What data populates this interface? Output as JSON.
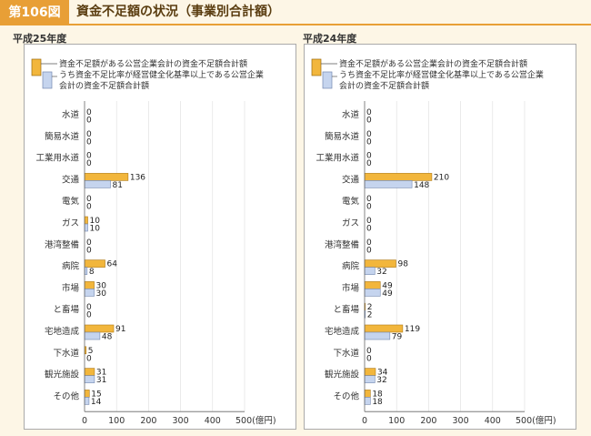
{
  "header": {
    "figure_number": "第106図",
    "title": "資金不足額の状況（事業別合計額）"
  },
  "colors": {
    "accent": "#e89f36",
    "series_a_fill": "#f2b63c",
    "series_b_fill": "#c5d4ee"
  },
  "chart_data": [
    {
      "type": "bar",
      "orientation": "horizontal",
      "period": "平成25年度",
      "legend": [
        "資金不足額がある公営企業会計の資金不足額合計額",
        "うち資金不足比率が経営健全化基準以上である公営企業会計の資金不足額合計額"
      ],
      "categories": [
        "水道",
        "簡易水道",
        "工業用水道",
        "交通",
        "電気",
        "ガス",
        "港湾整備",
        "病院",
        "市場",
        "と畜場",
        "宅地造成",
        "下水道",
        "観光施設",
        "その他"
      ],
      "series": [
        {
          "name": "資金不足額がある公営企業会計の資金不足額合計額",
          "values": [
            0,
            0,
            0,
            136,
            0,
            10,
            0,
            64,
            30,
            0,
            91,
            5,
            31,
            15
          ]
        },
        {
          "name": "うち資金不足比率が経営健全化基準以上である公営企業会計の資金不足額合計額",
          "values": [
            0,
            0,
            0,
            81,
            0,
            10,
            0,
            8,
            30,
            0,
            48,
            0,
            31,
            14
          ]
        }
      ],
      "xlim": [
        0,
        500
      ],
      "xticks": [
        "0",
        "100",
        "200",
        "300",
        "400",
        "500(億円)"
      ]
    },
    {
      "type": "bar",
      "orientation": "horizontal",
      "period": "平成24年度",
      "legend": [
        "資金不足額がある公営企業会計の資金不足額合計額",
        "うち資金不足比率が経営健全化基準以上である公営企業会計の資金不足額合計額"
      ],
      "categories": [
        "水道",
        "簡易水道",
        "工業用水道",
        "交通",
        "電気",
        "ガス",
        "港湾整備",
        "病院",
        "市場",
        "と畜場",
        "宅地造成",
        "下水道",
        "観光施設",
        "その他"
      ],
      "series": [
        {
          "name": "資金不足額がある公営企業会計の資金不足額合計額",
          "values": [
            0,
            0,
            0,
            210,
            0,
            0,
            0,
            98,
            49,
            2,
            119,
            0,
            34,
            18
          ]
        },
        {
          "name": "うち資金不足比率が経営健全化基準以上である公営企業会計の資金不足額合計額",
          "values": [
            0,
            0,
            0,
            148,
            0,
            0,
            0,
            32,
            49,
            2,
            79,
            0,
            32,
            18
          ]
        }
      ],
      "xlim": [
        0,
        500
      ],
      "xticks": [
        "0",
        "100",
        "200",
        "300",
        "400",
        "500(億円)"
      ]
    }
  ]
}
